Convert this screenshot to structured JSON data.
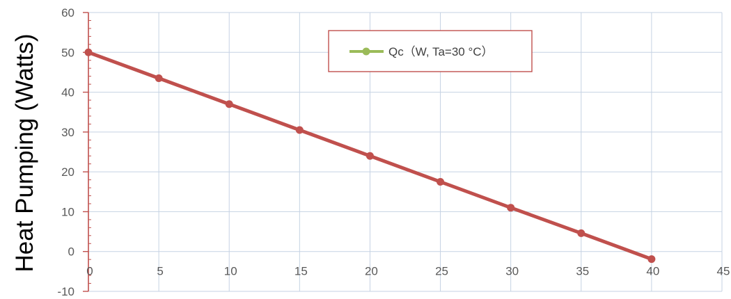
{
  "chart_data": {
    "type": "line",
    "title": "",
    "xlabel": "",
    "ylabel": "Heat Pumping (Watts)",
    "xlim": [
      0,
      45
    ],
    "ylim": [
      -10,
      60
    ],
    "x_ticks": [
      0,
      5,
      10,
      15,
      20,
      25,
      30,
      35,
      40,
      45
    ],
    "y_ticks": [
      -10,
      0,
      10,
      20,
      30,
      40,
      50,
      60
    ],
    "grid": true,
    "legend_position": "top-center",
    "legend_line_color": "#9BBB59",
    "series": [
      {
        "name": "Qc（W, Ta=30 °C）",
        "color": "#C0504D",
        "x": [
          0,
          5,
          10,
          15,
          20,
          25,
          30,
          35,
          40
        ],
        "y": [
          50,
          43.5,
          37,
          30.5,
          24,
          17.5,
          11,
          4.6,
          -1.9
        ]
      }
    ]
  },
  "colors": {
    "grid": "#C5D2E3",
    "axis": "#C0504D",
    "tick_text": "#595959",
    "legend_border": "#C0504D"
  }
}
